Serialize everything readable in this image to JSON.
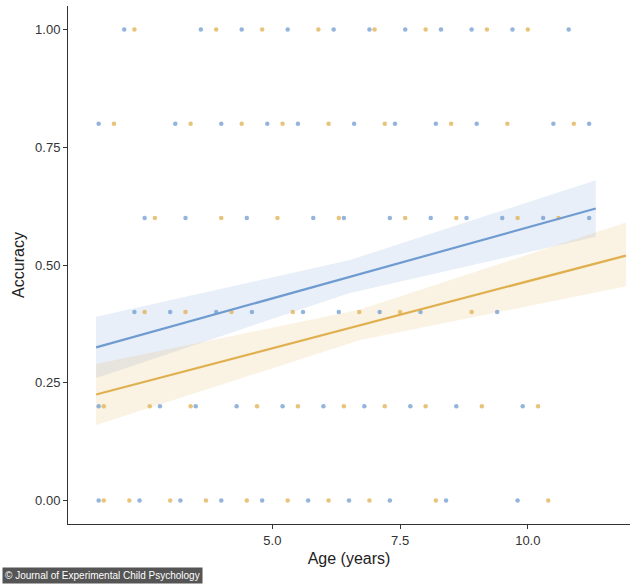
{
  "chart_data": {
    "type": "scatter",
    "x_label": "Age (years)",
    "y_label": "Accuracy",
    "xlim": [
      1.0,
      12.0
    ],
    "xticks": [
      {
        "value": 5.0,
        "label": "5.0"
      },
      7.5,
      {
        "value": 10.0,
        "label": "10.0"
      }
    ],
    "ylim": [
      -0.05,
      1.05
    ],
    "yticks": [
      {
        "value": 0,
        "label": "0.00"
      },
      {
        "value": 0.25,
        "label": "0.25"
      },
      {
        "value": 0.5,
        "label": "0.50"
      },
      {
        "value": 0.75,
        "label": "0.75"
      },
      {
        "value": 1,
        "label": "1.00"
      }
    ],
    "grid": false,
    "annotations": [
      {
        "text": "© Journal of Experimental Child Psychology"
      }
    ],
    "series": [
      {
        "type": "scatter",
        "marker": "circle",
        "color": "#6f9bd1",
        "x": [
          2.1,
          3.6,
          4.4,
          5.3,
          6.2,
          6.9,
          7.6,
          8.3,
          8.9,
          9.7,
          10.8,
          1.6,
          3.1,
          4.0,
          4.9,
          5.5,
          6.6,
          7.4,
          8.2,
          9.0,
          10.5,
          11.2,
          2.5,
          3.3,
          4.5,
          5.8,
          6.4,
          7.3,
          8.1,
          8.8,
          9.5,
          10.3,
          11.2,
          2.3,
          3.0,
          3.9,
          4.6,
          5.6,
          6.3,
          7.1,
          7.9,
          9.4,
          1.6,
          2.8,
          3.5,
          4.3,
          5.2,
          6.0,
          6.8,
          7.7,
          8.6,
          9.9,
          1.6,
          2.4,
          3.2,
          4.0,
          4.8,
          5.7,
          6.5,
          7.3,
          8.4,
          9.8
        ],
        "values": [
          1,
          1,
          1,
          1,
          1,
          1,
          1,
          1,
          1,
          1,
          1,
          0.8,
          0.8,
          0.8,
          0.8,
          0.8,
          0.8,
          0.8,
          0.8,
          0.8,
          0.8,
          0.8,
          0.6,
          0.6,
          0.6,
          0.6,
          0.6,
          0.6,
          0.6,
          0.6,
          0.6,
          0.6,
          0.6,
          0.4,
          0.4,
          0.4,
          0.4,
          0.4,
          0.4,
          0.4,
          0.4,
          0.4,
          0.2,
          0.2,
          0.2,
          0.2,
          0.2,
          0.2,
          0.2,
          0.2,
          0.2,
          0.2,
          0,
          0,
          0,
          0,
          0,
          0,
          0,
          0,
          0,
          0
        ]
      },
      {
        "type": "scatter",
        "marker": "circle",
        "color": "#e0b04f",
        "x": [
          2.3,
          3.9,
          4.8,
          5.9,
          7.0,
          8.0,
          9.2,
          10.0,
          1.9,
          3.4,
          4.4,
          5.2,
          6.1,
          7.2,
          8.5,
          9.6,
          10.9,
          2.7,
          4.0,
          5.1,
          6.3,
          7.6,
          8.6,
          9.8,
          10.6,
          2.5,
          3.3,
          4.2,
          5.4,
          6.7,
          7.5,
          8.9,
          1.7,
          2.6,
          3.4,
          4.7,
          5.5,
          6.4,
          7.2,
          8.0,
          9.1,
          10.2,
          1.7,
          2.2,
          3.0,
          3.7,
          4.5,
          5.3,
          6.1,
          6.9,
          8.2,
          10.4
        ],
        "values": [
          1,
          1,
          1,
          1,
          1,
          1,
          1,
          1,
          0.8,
          0.8,
          0.8,
          0.8,
          0.8,
          0.8,
          0.8,
          0.8,
          0.8,
          0.6,
          0.6,
          0.6,
          0.6,
          0.6,
          0.6,
          0.6,
          0.6,
          0.4,
          0.4,
          0.4,
          0.4,
          0.4,
          0.4,
          0.4,
          0.2,
          0.2,
          0.2,
          0.2,
          0.2,
          0.2,
          0.2,
          0.2,
          0.2,
          0.2,
          0,
          0,
          0,
          0,
          0,
          0,
          0,
          0,
          0,
          0
        ]
      },
      {
        "type": "line",
        "line_style": "solid",
        "color": "#6f9bd1",
        "x": [
          1.55,
          6.5,
          11.33
        ],
        "values": [
          0.325,
          0.474,
          0.62
        ],
        "ci_lower": [
          0.26,
          0.44,
          0.56
        ],
        "ci_upper": [
          0.39,
          0.51,
          0.68
        ]
      },
      {
        "type": "line",
        "line_style": "solid",
        "color": "#e0b04f",
        "x": [
          1.55,
          6.7,
          11.92
        ],
        "values": [
          0.225,
          0.372,
          0.52
        ],
        "ci_lower": [
          0.16,
          0.34,
          0.455
        ],
        "ci_upper": [
          0.29,
          0.405,
          0.59
        ]
      }
    ]
  }
}
